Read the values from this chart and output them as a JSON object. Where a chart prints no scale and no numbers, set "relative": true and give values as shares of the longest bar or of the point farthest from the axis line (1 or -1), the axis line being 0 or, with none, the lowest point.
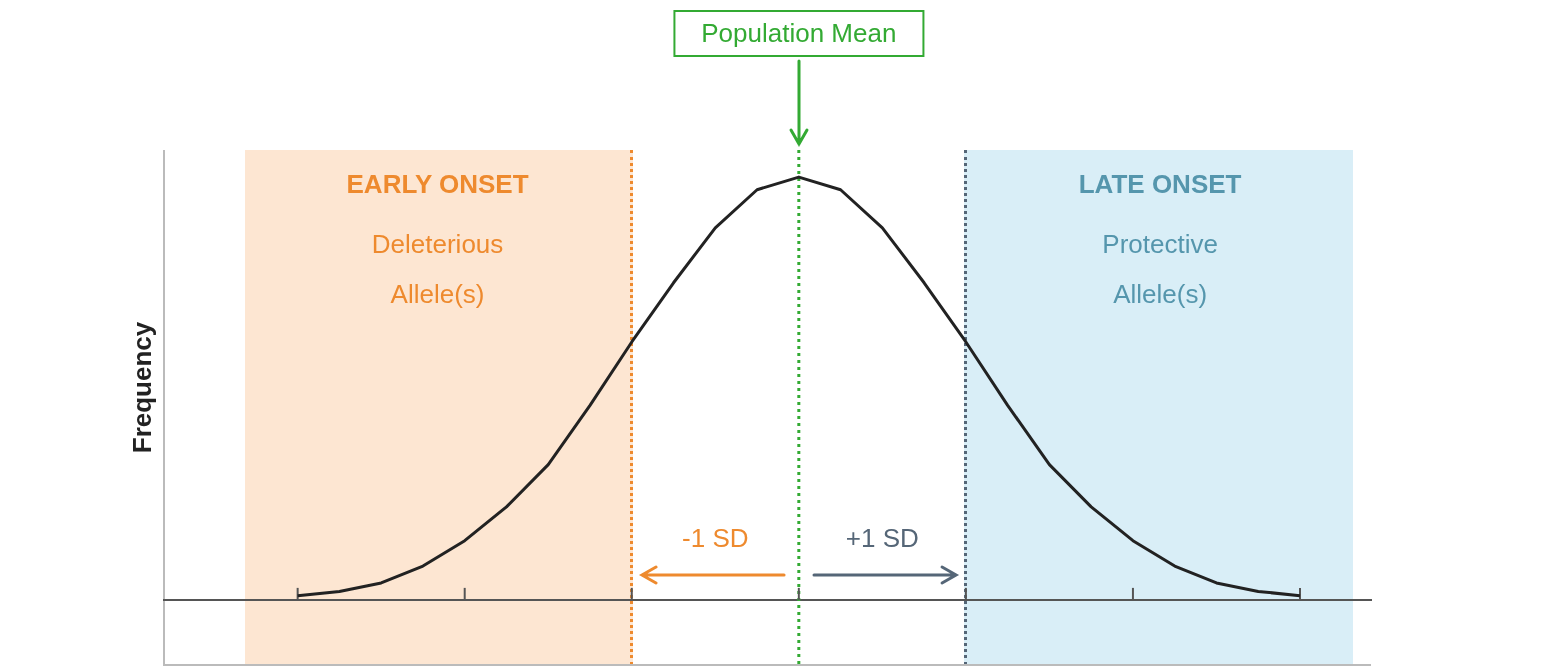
{
  "chart_data": {
    "type": "line",
    "ylabel": "Frequency",
    "relative": true,
    "categories": [
      null,
      null,
      null,
      null,
      null,
      null,
      null,
      null,
      null,
      null,
      null,
      null,
      null,
      null,
      null,
      null,
      null,
      null,
      null,
      null,
      null,
      null,
      null,
      null,
      null
    ],
    "series": [
      {
        "color": "#222222",
        "values": [
          0.01,
          0.02,
          0.04,
          0.08,
          0.14,
          0.22,
          0.32,
          0.46,
          0.61,
          0.75,
          0.88,
          0.97,
          1,
          0.97,
          0.88,
          0.75,
          0.61,
          0.46,
          0.32,
          0.22,
          0.14,
          0.08,
          0.04,
          0.02,
          0.01
        ]
      }
    ],
    "ref_lines": [
      {
        "axis": "x",
        "label": "Population Mean",
        "color": "#33aa33",
        "line_style": "dotted"
      }
    ],
    "annotations": [
      "EARLY ONSET",
      "Deleterious Allele(s)",
      "LATE ONSET",
      "Protective Allele(s)",
      "-1 SD",
      "+1 SD"
    ]
  }
}
